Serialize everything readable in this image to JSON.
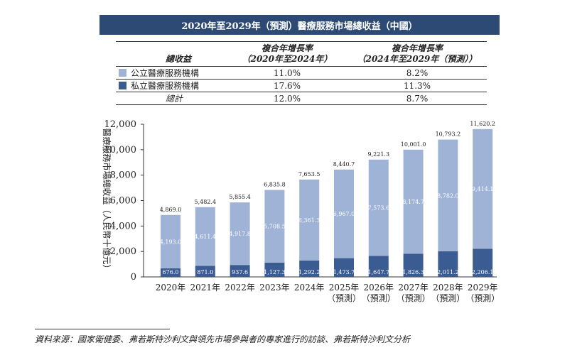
{
  "title": "2020年至2029年（預測）醫療服務市場總收益（中國）",
  "table": {
    "header": {
      "label": "總收益",
      "cagr1_line1": "複合年增長率",
      "cagr1_line2": "（2020年至2024年）",
      "cagr2_line1": "複合年增長率",
      "cagr2_line2": "（2024年至2029年（預測））"
    },
    "rows": [
      {
        "label": "公立醫療服務機構",
        "cagr1": "11.0%",
        "cagr2": "8.2%",
        "color": "#9fb3d6"
      },
      {
        "label": "私立醫療服務機構",
        "cagr1": "17.6%",
        "cagr2": "11.3%",
        "color": "#3b5c92"
      }
    ],
    "total": {
      "label": "總計",
      "cagr1": "12.0%",
      "cagr2": "8.7%"
    }
  },
  "chart_data": {
    "type": "bar",
    "stacked": true,
    "ylabel": "醫療服務市場總收益（人民幣十億元）",
    "ylim": [
      0,
      12000
    ],
    "yticks": [
      "0",
      "2,000",
      "4,000",
      "6,000",
      "8,000",
      "10,000",
      "12,000"
    ],
    "categories": [
      [
        "2020年",
        ""
      ],
      [
        "2021年",
        ""
      ],
      [
        "2022年",
        ""
      ],
      [
        "2023年",
        ""
      ],
      [
        "2024年",
        ""
      ],
      [
        "2025年",
        "（預測）"
      ],
      [
        "2026年",
        "（預測）"
      ],
      [
        "2027年",
        "（預測）"
      ],
      [
        "2028年",
        "（預測）"
      ],
      [
        "2029年",
        "（預測）"
      ]
    ],
    "series": [
      {
        "name": "私立醫療服務機構",
        "color": "#3b5c92",
        "values": [
          676.0,
          871.0,
          937.6,
          1127.3,
          1292.2,
          1473.7,
          1647.7,
          1826.3,
          2011.2,
          2206.1
        ],
        "labels": [
          "676.0",
          "871.0",
          "937.6",
          "1,127.3",
          "1,292.2",
          "1,473.7",
          "1,647.7",
          "1,826.3",
          "2,011.2",
          "2,206.1"
        ]
      },
      {
        "name": "公立醫療服務機構",
        "color": "#9fb3d6",
        "values": [
          4193.0,
          4611.4,
          4917.8,
          5708.5,
          6361.3,
          6967.0,
          7573.6,
          8174.7,
          8782.0,
          9414.1
        ],
        "labels": [
          "4,193.0",
          "4,611.4",
          "4,917.8",
          "5,708.5",
          "6,361.3",
          "6,967.0",
          "7,573.6",
          "8,174.7",
          "8,782.0",
          "9,414.1"
        ]
      }
    ],
    "totals": [
      4869.0,
      5482.4,
      5855.4,
      6835.8,
      7653.5,
      8440.7,
      9221.3,
      10001.0,
      10793.2,
      11620.2
    ],
    "total_labels": [
      "4,869.0",
      "5,482.4",
      "5,855.4",
      "6,835.8",
      "7,653.5",
      "8,440.7",
      "9,221.3",
      "10,001.0",
      "10,793.2",
      "11,620.2"
    ]
  },
  "source": "資料來源：國家衛健委、弗若斯特沙利文與領先市場參與者的專家進行的訪談、弗若斯特沙利文分析"
}
